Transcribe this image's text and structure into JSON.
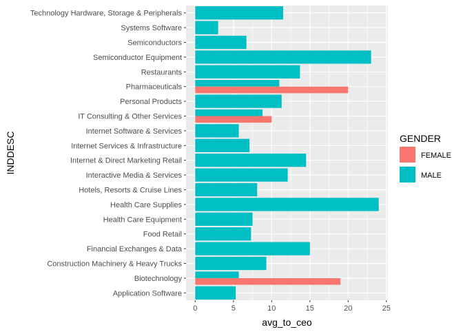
{
  "chart_data": {
    "type": "bar",
    "orientation": "horizontal",
    "xlabel": "avg_to_ceo",
    "ylabel": "INDDESC",
    "xlim": [
      -1.2,
      25.2
    ],
    "xticks": [
      0,
      5,
      10,
      15,
      20,
      25
    ],
    "grid": true,
    "legend": {
      "title": "GENDER",
      "position": "right",
      "entries": [
        {
          "name": "FEMALE",
          "color": "#F8766D"
        },
        {
          "name": "MALE",
          "color": "#00BFC4"
        }
      ]
    },
    "categories": [
      "Technology Hardware, Storage & Peripherals",
      "Systems Software",
      "Semiconductors",
      "Semiconductor Equipment",
      "Restaurants",
      "Pharmaceuticals",
      "Personal Products",
      "IT Consulting & Other Services",
      "Internet Software & Services",
      "Internet Services & Infrastructure",
      "Internet & Direct Marketing Retail",
      "Interactive Media & Services",
      "Hotels, Resorts & Cruise Lines",
      "Health Care Supplies",
      "Health Care Equipment",
      "Food Retail",
      "Financial Exchanges & Data",
      "Construction Machinery & Heavy Trucks",
      "Biotechnology",
      "Application Software"
    ],
    "series": [
      {
        "name": "FEMALE",
        "color": "#F8766D",
        "values": [
          null,
          null,
          null,
          null,
          null,
          20.0,
          null,
          10.0,
          null,
          null,
          null,
          null,
          null,
          null,
          null,
          null,
          null,
          null,
          19.0,
          null
        ]
      },
      {
        "name": "MALE",
        "color": "#00BFC4",
        "values": [
          11.5,
          3.0,
          6.7,
          23.0,
          13.7,
          11.0,
          11.3,
          8.8,
          5.7,
          7.1,
          14.5,
          12.1,
          8.1,
          24.0,
          7.5,
          7.3,
          15.0,
          9.3,
          5.7,
          5.3
        ]
      }
    ]
  }
}
